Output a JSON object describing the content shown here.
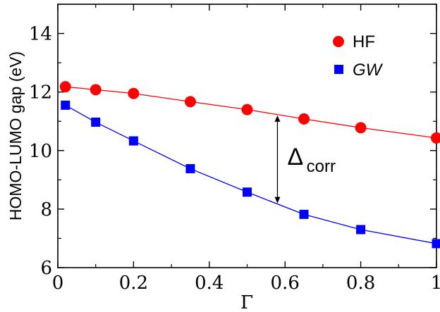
{
  "chart_data": {
    "type": "line",
    "title": "",
    "xlabel": "Γ",
    "ylabel": "HOMO-LUMO gap (eV)",
    "xlim": [
      0,
      1
    ],
    "ylim": [
      6,
      15
    ],
    "xticks": [
      0,
      0.2,
      0.4,
      0.6,
      0.8,
      1
    ],
    "xtick_labels": [
      "0",
      "0.2",
      "0.4",
      "0.6",
      "0.8",
      "1"
    ],
    "yticks": [
      6,
      8,
      10,
      12,
      14
    ],
    "ytick_labels": [
      "6",
      "8",
      "10",
      "12",
      "14"
    ],
    "grid": false,
    "legend_position": "top-right",
    "series": [
      {
        "name": "HF",
        "color": "#ff0000",
        "marker": "circle",
        "x": [
          0.02,
          0.1,
          0.2,
          0.35,
          0.5,
          0.65,
          0.8,
          1.0
        ],
        "y": [
          12.18,
          12.08,
          11.95,
          11.67,
          11.4,
          11.08,
          10.78,
          10.43
        ]
      },
      {
        "name": "GW",
        "color": "#0000ff",
        "marker": "square",
        "x": [
          0.02,
          0.1,
          0.2,
          0.35,
          0.5,
          0.65,
          0.8,
          1.0
        ],
        "y": [
          11.55,
          10.97,
          10.33,
          9.38,
          8.58,
          7.82,
          7.3,
          6.82
        ]
      }
    ],
    "annotation": {
      "label": "Δ",
      "subscript": "corr",
      "arrow_x": 0.58,
      "arrow_y_top": 11.2,
      "arrow_y_bottom": 8.2
    }
  }
}
